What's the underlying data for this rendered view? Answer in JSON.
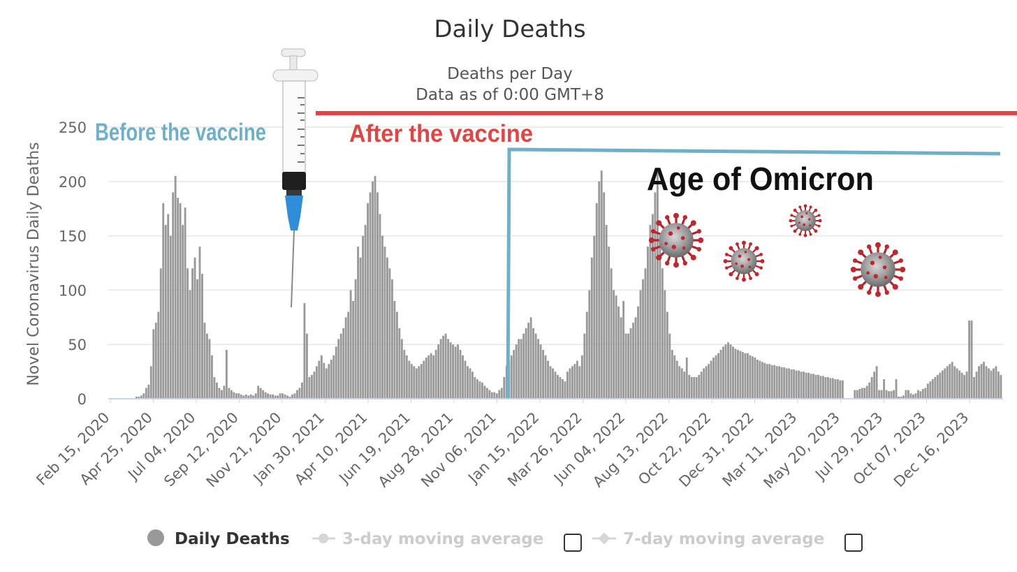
{
  "chart_data": {
    "type": "bar",
    "title": "Daily Deaths",
    "subtitle_line1": "Deaths per Day",
    "subtitle_line2": "Data as of 0:00 GMT+8",
    "ylabel": "Novel Coronavirus Daily Deaths",
    "ylim": [
      0,
      260
    ],
    "yticks": [
      0,
      50,
      100,
      150,
      200,
      250
    ],
    "xticks": [
      "Feb 15, 2020",
      "Apr 25, 2020",
      "Jul 04, 2020",
      "Sep 12, 2020",
      "Nov 21, 2020",
      "Jan 30, 2021",
      "Apr 10, 2021",
      "Jun 19, 2021",
      "Aug 28, 2021",
      "Nov 06, 2021",
      "Jan 15, 2022",
      "Mar 26, 2022",
      "Jun 04, 2022",
      "Aug 13, 2022",
      "Oct 22, 2022",
      "Dec 31, 2022",
      "Mar 11, 2023",
      "May 20, 2023",
      "Jul 29, 2023",
      "Oct 07, 2023",
      "Dec 16, 2023"
    ],
    "series": [
      {
        "name": "Daily Deaths",
        "color": "#999999",
        "values": [
          0,
          0,
          0,
          0,
          2,
          2,
          3,
          5,
          10,
          13,
          30,
          64,
          70,
          80,
          120,
          180,
          160,
          170,
          150,
          190,
          205,
          185,
          180,
          160,
          176,
          120,
          100,
          120,
          130,
          110,
          140,
          115,
          70,
          60,
          55,
          40,
          20,
          15,
          10,
          8,
          12,
          45,
          10,
          8,
          6,
          5,
          5,
          4,
          3,
          4,
          3,
          4,
          3,
          5,
          12,
          10,
          8,
          6,
          5,
          4,
          4,
          3,
          3,
          5,
          5,
          4,
          3,
          2,
          4,
          5,
          8,
          10,
          15,
          88,
          60,
          20,
          22,
          25,
          30,
          35,
          40,
          33,
          28,
          32,
          36,
          40,
          48,
          55,
          60,
          65,
          75,
          80,
          100,
          90,
          110,
          140,
          130,
          150,
          160,
          180,
          190,
          200,
          205,
          190,
          170,
          150,
          140,
          130,
          120,
          110,
          90,
          80,
          65,
          55,
          45,
          40,
          35,
          32,
          30,
          28,
          30,
          32,
          35,
          38,
          40,
          42,
          40,
          45,
          50,
          55,
          58,
          60,
          55,
          52,
          50,
          48,
          50,
          45,
          40,
          35,
          30,
          28,
          25,
          20,
          18,
          16,
          15,
          12,
          10,
          8,
          6,
          6,
          5,
          8,
          10,
          20,
          30,
          35,
          40,
          45,
          50,
          55,
          55,
          60,
          65,
          70,
          75,
          65,
          60,
          55,
          50,
          45,
          40,
          35,
          30,
          28,
          25,
          22,
          20,
          18,
          16,
          25,
          28,
          30,
          32,
          35,
          30,
          40,
          60,
          80,
          100,
          130,
          150,
          180,
          200,
          210,
          190,
          160,
          140,
          120,
          100,
          95,
          85,
          75,
          90,
          60,
          60,
          65,
          70,
          75,
          85,
          100,
          110,
          120,
          140,
          160,
          170,
          190,
          210,
          150,
          120,
          100,
          80,
          60,
          45,
          40,
          35,
          30,
          28,
          25,
          38,
          22,
          20,
          20,
          20,
          22,
          25,
          28,
          30,
          32,
          35,
          38,
          40,
          42,
          45,
          48,
          50,
          52,
          50,
          48,
          46,
          45,
          44,
          43,
          42,
          42,
          40,
          39,
          38,
          36,
          35,
          34,
          33,
          32,
          32,
          31,
          31,
          30,
          30,
          29,
          29,
          28,
          28,
          27,
          27,
          26,
          26,
          25,
          25,
          24,
          24,
          23,
          23,
          22,
          22,
          21,
          21,
          20,
          20,
          19,
          19,
          18,
          18,
          17,
          17,
          0,
          0,
          0,
          0,
          8,
          8,
          9,
          10,
          10,
          12,
          15,
          20,
          25,
          30,
          8,
          8,
          18,
          8,
          7,
          7,
          8,
          18,
          2,
          2,
          3,
          8,
          8,
          5,
          4,
          5,
          8,
          7,
          9,
          10,
          14,
          16,
          18,
          20,
          22,
          24,
          26,
          28,
          30,
          32,
          34,
          30,
          28,
          26,
          24,
          22,
          25,
          72,
          72,
          20,
          25,
          30,
          32,
          34,
          30,
          28,
          26,
          28,
          30,
          25,
          22
        ]
      },
      {
        "name": "3-day moving average"
      },
      {
        "name": "7-day moving average"
      }
    ],
    "grid": true,
    "legend_position": "bottom-center"
  },
  "annotations": {
    "before_vaccine": "Before the vaccine",
    "after_vaccine": "After the vaccine",
    "age_of_omicron": "Age of Omicron",
    "before_color": "#6fb0c8",
    "after_color": "#e04545",
    "omicron_color": "#111111",
    "syringe_icon": "syringe-icon",
    "virus_icon": "virus-icon"
  }
}
